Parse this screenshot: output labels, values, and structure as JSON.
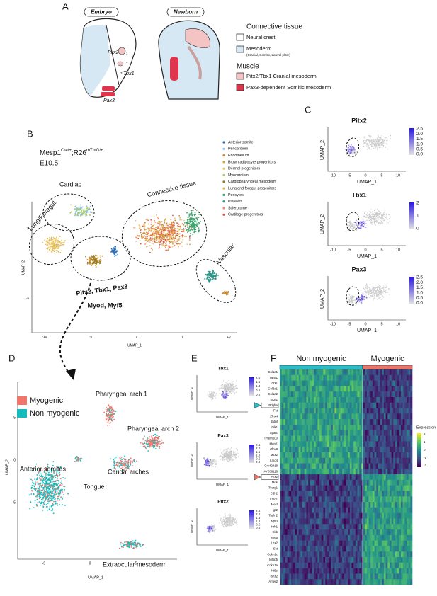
{
  "panel_a": {
    "letter": "A",
    "embryo_title": "Embryo",
    "newborn_title": "Newborn",
    "embryo_labels": [
      "Pitx2",
      "Tbx1",
      "Pax3"
    ],
    "arch_numbers": [
      "1",
      "2",
      "3",
      "4"
    ],
    "connective_title": "Connective tissue",
    "neural_crest": "Neural crest",
    "mesoderm": "Mesoderm",
    "mesoderm_note": "(Cranial, Somitic, Lateral plate)",
    "muscle_title": "Muscle",
    "cranial_muscle": "Pitx2/Tbx1 Cranial mesoderm",
    "somitic_muscle": "Pax3-dependent Somitic mesoderm"
  },
  "panel_b": {
    "letter": "B",
    "genotype": [
      "Mesp1",
      "Cre/+",
      ";R26",
      "mTmG/+"
    ],
    "stage": "E10.5",
    "legend": [
      "Anterior somite",
      "Pericardium",
      "Endothelium",
      "Brown adipocyte  progenitors",
      "Dermal progenitors",
      "Myocardium",
      "Cardiopharyngeal mesoderm",
      "Lung and foregut progenitors",
      "Pericytes",
      "Platelets",
      "Sclerotome",
      "Cartilage progenitors"
    ],
    "regions": [
      "Cardiac",
      "Lung/Foregut",
      "Connective tissue",
      "Vascular"
    ],
    "muscle_genes": [
      "Pitx2, Tbx1, Pax3",
      "Myod, Myf5"
    ],
    "x_label": "UMAP_1",
    "y_label": "UMAP_2",
    "x_ticks": [
      "-10",
      "-5",
      "0",
      "5",
      "10"
    ],
    "y_ticks": [
      "0",
      "-5"
    ]
  },
  "panel_c": {
    "letter": "C",
    "plots": [
      {
        "title": "Pitx2",
        "scale": [
          "2.5",
          "2.0",
          "1.5",
          "1.0",
          "0.5",
          "0.0"
        ]
      },
      {
        "title": "Tbx1",
        "scale": [
          "2",
          "1",
          "0"
        ]
      },
      {
        "title": "Pax3",
        "scale": [
          "2.5",
          "2.0",
          "1.5",
          "1.0",
          "0.5",
          "0.0"
        ]
      }
    ],
    "x_label": "UMAP_1",
    "y_label": "UMAP_2",
    "x_ticks": [
      "-10",
      "-5",
      "0",
      "5",
      "10"
    ]
  },
  "panel_d": {
    "letter": "D",
    "legend": [
      "Myogenic",
      "Non myogenic"
    ],
    "regions": [
      "Pharyngeal arch 1",
      "Pharyngeal arch 2",
      "Caudal arches",
      "Tongue",
      "Anterior somites",
      "Extraocular mesoderm"
    ],
    "x_label": "UMAP_1",
    "y_label": "UMAP_2",
    "x_ticks": [
      "-5",
      "0",
      "5"
    ],
    "y_ticks": [
      "5",
      "0",
      "-5"
    ]
  },
  "panel_e": {
    "letter": "E",
    "plots": [
      {
        "title": "Tbx1",
        "scale": [
          "2.0",
          "1.5",
          "1.0",
          "0.5",
          "0.0"
        ]
      },
      {
        "title": "Pax3",
        "scale": [
          "2.5",
          "2.0",
          "1.5",
          "1.0",
          "0.5",
          "0.0"
        ]
      },
      {
        "title": "Pitx2",
        "scale": [
          "2.5",
          "2.0",
          "1.5",
          "1.0",
          "0.5",
          "0.0"
        ]
      }
    ],
    "x_label": "UMAP_1",
    "y_label": "UMAP_2"
  },
  "panel_f": {
    "letter": "F",
    "groups": [
      "Non myogenic",
      "Myogenic"
    ],
    "genes": [
      "Col1a1",
      "Twist1",
      "Prrx1",
      "Col3a1",
      "Col1a2",
      "Nr2f1",
      "Pdgfra",
      "Fst",
      "Zfhx4",
      "Bdnf",
      "Dlk1",
      "Sparc",
      "Tmem100",
      "Meis1",
      "Zfhx3",
      "Msx2",
      "Lmo4",
      "Gm42418",
      "AY036118",
      "Pitx2",
      "Mdk",
      "Tcerg1",
      "Cdh2",
      "Lmo1",
      "Mest",
      "Igf2",
      "Tagln2",
      "Npr3",
      "Hrh1",
      "Ckb",
      "Nrep",
      "Lhx2",
      "Sst",
      "Cdkn1c",
      "Igfbp5",
      "Cdkn1a",
      "Nt5e",
      "Tshz2",
      "Amer2"
    ],
    "legend_title": "Expression",
    "legend_ticks": [
      "2",
      "1",
      "0",
      "-1",
      "-2"
    ]
  }
}
